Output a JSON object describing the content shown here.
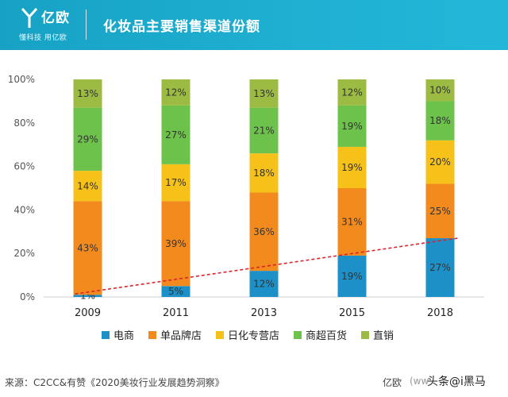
{
  "header": {
    "brand_name": "亿欧",
    "brand_tagline": "懂科技 用亿欧",
    "title": "化妆品主要销售渠道份额"
  },
  "chart_data": {
    "type": "bar",
    "stacked": true,
    "categories": [
      "2009",
      "2011",
      "2013",
      "2015",
      "2018"
    ],
    "series": [
      {
        "name": "电商",
        "color": "#1e90c8",
        "values": [
          1,
          5,
          12,
          19,
          27
        ]
      },
      {
        "name": "单品牌店",
        "color": "#f28a1e",
        "values": [
          43,
          39,
          36,
          31,
          25
        ]
      },
      {
        "name": "日化专营店",
        "color": "#f6c21a",
        "values": [
          14,
          17,
          18,
          19,
          20
        ]
      },
      {
        "name": "商超百货",
        "color": "#6cc24a",
        "values": [
          29,
          27,
          21,
          19,
          18
        ]
      },
      {
        "name": "直销",
        "color": "#9bbb43",
        "values": [
          13,
          12,
          13,
          12,
          10
        ]
      }
    ],
    "ylim": [
      0,
      100
    ],
    "yticks": [
      "0%",
      "20%",
      "40%",
      "60%",
      "80%",
      "100%"
    ],
    "trendline": {
      "style": "dashed",
      "color": "#d9252a"
    },
    "legend_position": "bottom"
  },
  "footer": {
    "source": "来源：C2CC&有赞《2020美妆行业发展趋势洞察》",
    "brand": "亿欧",
    "site": "(ww",
    "watermark": "头条@i黑马"
  }
}
